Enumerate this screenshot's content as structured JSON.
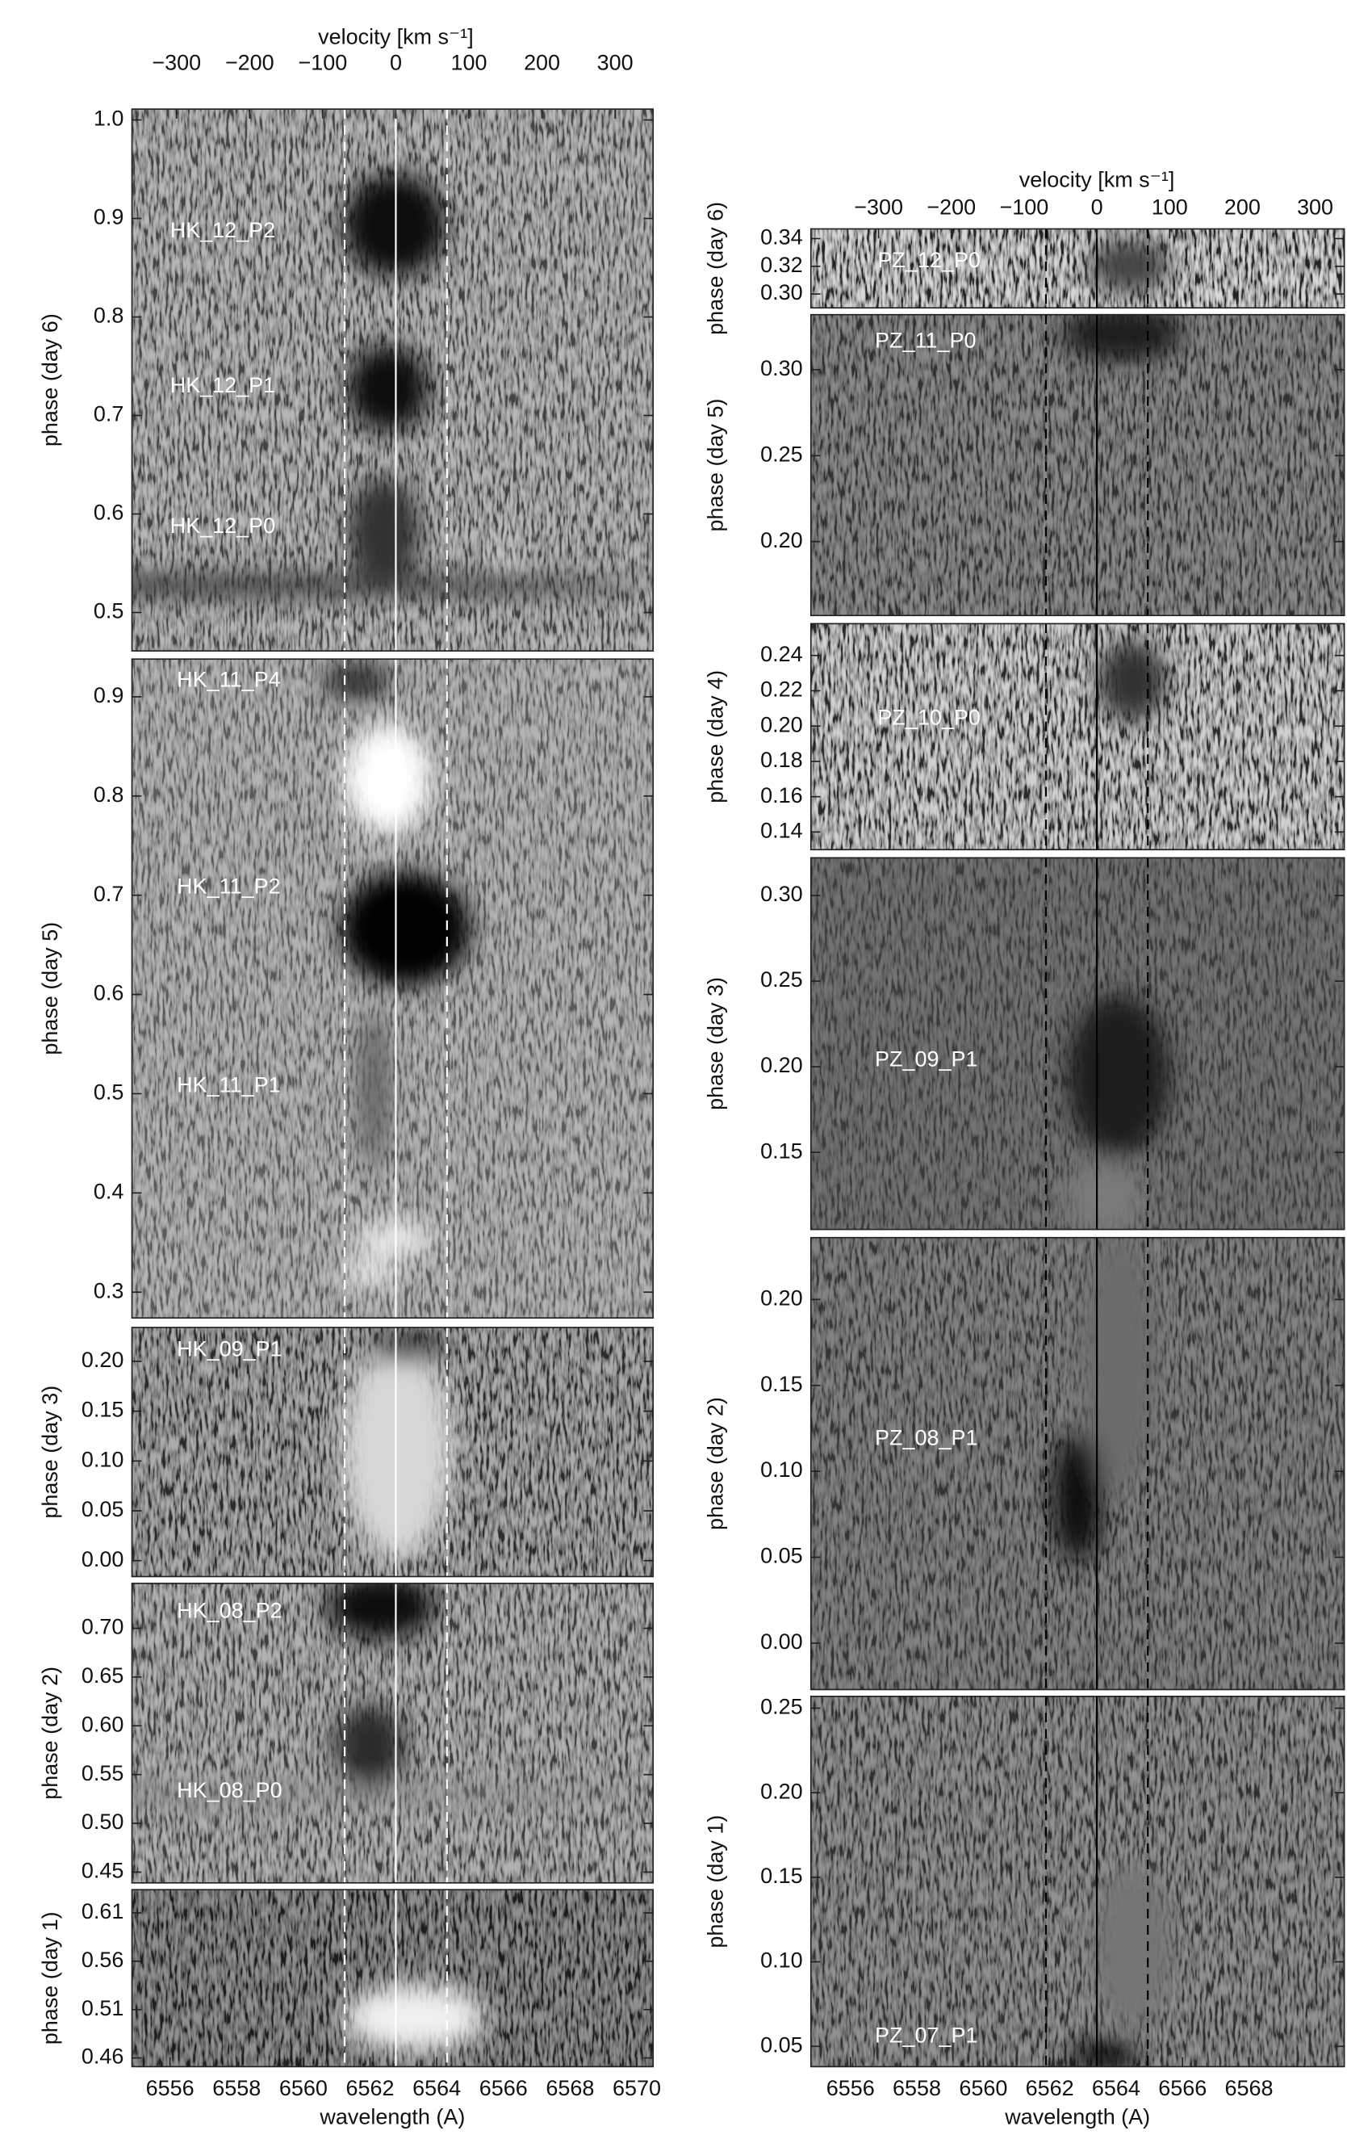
{
  "chart_data": [
    {
      "type": "heatmap",
      "xlabel": "wavelength (A)",
      "xlim": [
        6554.86,
        6570.49
      ],
      "xticks": [
        6556,
        6558,
        6560,
        6562,
        6564,
        6566,
        6568,
        6570
      ],
      "x2label": "velocity [km s⁻¹]",
      "x2lim": [
        -361,
        352
      ],
      "x2ticks": [
        {
          "value": -300,
          "label": "−300"
        },
        {
          "value": -200,
          "label": "−200"
        },
        {
          "value": -100,
          "label": "−100"
        },
        0,
        100,
        200,
        300
      ],
      "solid_velocity": 0,
      "dashed_velocities": [
        -70,
        70
      ],
      "line_color": "#ffffff",
      "panels": [
        {
          "ylabel": "phase (day 6)",
          "ylim": [
            0.461,
            1.011
          ],
          "yticks": [
            0.5,
            0.6,
            0.7,
            0.8,
            0.9,
            {
              "value": 1.0,
              "label": "1.0"
            }
          ],
          "labels": [
            "HK_12_P2",
            "HK_12_P1",
            "HK_12_P0"
          ]
        },
        {
          "ylabel": "phase (day 5)",
          "ylim": [
            0.274,
            0.938
          ],
          "yticks": [
            0.3,
            0.4,
            0.5,
            0.6,
            0.7,
            0.8,
            0.9
          ],
          "labels": [
            "HK_11_P4",
            "HK_11_P2",
            "HK_11_P1"
          ]
        },
        {
          "ylabel": "phase (day 3)",
          "ylim": [
            -0.016,
            0.234
          ],
          "yticks": [
            {
              "value": 0,
              "label": "0.00"
            },
            0.05,
            {
              "value": 0.1,
              "label": "0.10"
            },
            0.15,
            {
              "value": 0.2,
              "label": "0.20"
            }
          ],
          "labels": [
            "HK_09_P1"
          ]
        },
        {
          "ylabel": "phase (day 2)",
          "ylim": [
            0.439,
            0.746
          ],
          "yticks": [
            0.45,
            {
              "value": 0.5,
              "label": "0.50"
            },
            0.55,
            {
              "value": 0.6,
              "label": "0.60"
            },
            0.65,
            {
              "value": 0.7,
              "label": "0.70"
            }
          ],
          "labels": [
            "HK_08_P2",
            "HK_08_P0"
          ]
        },
        {
          "ylabel": "phase (day 1)",
          "ylim": [
            0.451,
            0.634
          ],
          "yticks": [
            0.46,
            0.51,
            0.56,
            0.61
          ],
          "labels": []
        }
      ]
    },
    {
      "type": "heatmap",
      "xlabel": "wavelength (A)",
      "xlim": [
        6554.81,
        6570.87
      ],
      "xticks": [
        6556,
        6558,
        6560,
        6562,
        6564,
        6566,
        6568
      ],
      "x2label": "velocity [km s⁻¹]",
      "x2lim": [
        -393,
        340
      ],
      "x2ticks": [
        {
          "value": -300,
          "label": "−300"
        },
        {
          "value": -200,
          "label": "−200"
        },
        {
          "value": -100,
          "label": "−100"
        },
        0,
        100,
        200,
        300
      ],
      "solid_velocity": 0,
      "dashed_velocities": [
        -70,
        70
      ],
      "line_color": "#000000",
      "panels": [
        {
          "ylabel": "phase (day 6)",
          "ylim": [
            0.29,
            0.347
          ],
          "yticks": [
            {
              "value": 0.3,
              "label": "0.30"
            },
            0.32,
            0.34
          ],
          "labels": [
            "PZ_12_P0"
          ]
        },
        {
          "ylabel": "phase (day 5)",
          "ylim": [
            0.157,
            0.332
          ],
          "yticks": [
            {
              "value": 0.2,
              "label": "0.20"
            },
            0.25,
            {
              "value": 0.3,
              "label": "0.30"
            }
          ],
          "labels": [
            "PZ_11_P0"
          ]
        },
        {
          "ylabel": "phase (day 4)",
          "ylim": [
            0.13,
            0.258
          ],
          "yticks": [
            0.14,
            0.16,
            0.18,
            {
              "value": 0.2,
              "label": "0.20"
            },
            0.22,
            0.24
          ],
          "labels": [
            "PZ_10_P0"
          ]
        },
        {
          "ylabel": "phase (day 3)",
          "ylim": [
            0.105,
            0.322
          ],
          "yticks": [
            0.15,
            {
              "value": 0.2,
              "label": "0.20"
            },
            0.25,
            {
              "value": 0.3,
              "label": "0.30"
            }
          ],
          "labels": [
            "PZ_09_P1"
          ]
        },
        {
          "ylabel": "phase (day 2)",
          "ylim": [
            -0.027,
            0.236
          ],
          "yticks": [
            {
              "value": 0,
              "label": "0.00"
            },
            0.05,
            {
              "value": 0.1,
              "label": "0.10"
            },
            0.15,
            {
              "value": 0.2,
              "label": "0.20"
            }
          ],
          "labels": [
            "PZ_08_P1"
          ]
        },
        {
          "ylabel": "phase (day 1)",
          "ylim": [
            0.038,
            0.257
          ],
          "yticks": [
            0.05,
            {
              "value": 0.1,
              "label": "0.10"
            },
            0.15,
            {
              "value": 0.2,
              "label": "0.20"
            },
            0.25
          ],
          "labels": [
            "PZ_07_P1"
          ]
        }
      ]
    }
  ]
}
